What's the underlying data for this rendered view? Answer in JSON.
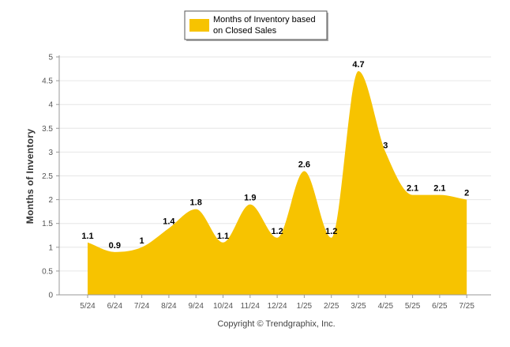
{
  "chart_data": {
    "type": "area",
    "categories": [
      "5/24",
      "6/24",
      "7/24",
      "8/24",
      "9/24",
      "10/24",
      "11/24",
      "12/24",
      "1/25",
      "2/25",
      "3/25",
      "4/25",
      "5/25",
      "6/25",
      "7/25"
    ],
    "series": [
      {
        "name": "Months of Inventory based on Closed Sales",
        "name_lines": [
          "Months of Inventory based",
          "on Closed Sales"
        ],
        "values": [
          1.1,
          0.9,
          1,
          1.4,
          1.8,
          1.1,
          1.9,
          1.2,
          2.6,
          1.2,
          4.7,
          3,
          2.1,
          2.1,
          2
        ],
        "labels": [
          "1.1",
          "0.9",
          "1",
          "1.4",
          "1.8",
          "1.1",
          "1.9",
          "1.2",
          "2.6",
          "1.2",
          "4.7",
          "3",
          "2.1",
          "2.1",
          "2"
        ],
        "color": "#f7c300"
      }
    ],
    "ylabel": "Months of Inventory",
    "xlabel": "",
    "ylim": [
      0,
      5
    ],
    "yticks": [
      0,
      0.5,
      1,
      1.5,
      2,
      2.5,
      3,
      3.5,
      4,
      4.5,
      5
    ],
    "ytick_labels": [
      "0",
      "0.5",
      "1",
      "1.5",
      "2",
      "2.5",
      "3",
      "3.5",
      "4",
      "4.5",
      "5"
    ],
    "grid": true,
    "legend_position": "top-center"
  },
  "footer": {
    "copyright": "Copyright © Trendgraphix, Inc."
  },
  "colors": {
    "area": "#f7c300",
    "grid": "#e6e6e6",
    "axis": "#999999"
  }
}
